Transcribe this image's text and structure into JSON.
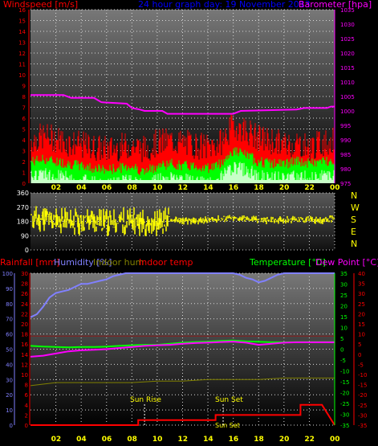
{
  "header": {
    "left_label": "Windspeed [m/s]",
    "center_label": "24 hour graph day:  19 November 2013",
    "right_label": "Barometer [hpa]"
  },
  "colors": {
    "wind": "#ff0000",
    "gust_bg": "#ff0000",
    "wind_avg": "#00ff00",
    "wind_light": "#c8ffc8",
    "baro": "#ff00ff",
    "dir": "#ffff00",
    "rain": "#ff0000",
    "humidity": "#8080ff",
    "indoor_hum": "#808000",
    "indoor_temp": "#ff0000",
    "temperature": "#00ff00",
    "dewpoint": "#ff00ff",
    "left_axis": "#ff0000",
    "baro_axis": "#ff00ff",
    "temp_axis": "#00ff00",
    "dew_axis": "#ff0000",
    "hum_axis": "#8080ff",
    "x_axis": "#ffff00"
  },
  "x_ticks": [
    "02",
    "04",
    "06",
    "08",
    "10",
    "12",
    "14",
    "16",
    "18",
    "20",
    "22",
    "00"
  ],
  "chart_data": [
    {
      "type": "line",
      "title": "24 hour graph day:  19 November 2013",
      "ylabel_left": "Windspeed [m/s]",
      "ylabel_right": "Barometer [hpa]",
      "y_left_ticks": [
        "0",
        "1",
        "2",
        "3",
        "4",
        "5",
        "6",
        "7",
        "8",
        "9",
        "10",
        "11",
        "12",
        "13",
        "14",
        "15",
        "16"
      ],
      "y_right_ticks": [
        "975",
        "980",
        "985",
        "990",
        "995",
        "1000",
        "1005",
        "1010",
        "1015",
        "1020",
        "1025",
        "1030",
        "1035"
      ],
      "ylim_left": [
        0,
        16
      ],
      "ylim_right": [
        975,
        1035
      ],
      "series": [
        {
          "name": "Barometer",
          "axis": "right",
          "x": [
            0,
            2.6,
            3.2,
            5.0,
            5.6,
            7.6,
            8.0,
            8.6,
            9.0,
            10.4,
            10.8,
            11.2,
            11.6,
            16.0,
            16.6,
            21.0,
            21.6,
            23.4,
            23.7,
            24
          ],
          "values": [
            1005.5,
            1005.5,
            1004.5,
            1004.5,
            1003.0,
            1002.5,
            1001.0,
            1000.5,
            1000.0,
            1000.0,
            999.0,
            999.0,
            999.0,
            999.0,
            1000.0,
            1000.5,
            1001.0,
            1001.0,
            1001.5,
            1001.5
          ]
        },
        {
          "name": "Wind gust",
          "axis": "left",
          "x": [
            0,
            1,
            2,
            3,
            4,
            5,
            6,
            7,
            8,
            9,
            10,
            11,
            12,
            13,
            14,
            15,
            16,
            17,
            18,
            19,
            20,
            21,
            22,
            23,
            24
          ],
          "values": [
            3.8,
            4.2,
            4.0,
            3.6,
            3.4,
            3.2,
            3.0,
            3.2,
            3.4,
            3.0,
            3.6,
            3.8,
            3.6,
            3.4,
            3.2,
            3.6,
            5.2,
            4.8,
            4.0,
            3.8,
            3.4,
            3.6,
            3.2,
            3.6,
            3.8
          ]
        },
        {
          "name": "Wind average",
          "axis": "left",
          "x": [
            0,
            1,
            2,
            3,
            4,
            5,
            6,
            7,
            8,
            9,
            10,
            11,
            12,
            13,
            14,
            15,
            16,
            17,
            18,
            19,
            20,
            21,
            22,
            23,
            24
          ],
          "values": [
            2.0,
            2.2,
            2.0,
            1.8,
            1.6,
            1.4,
            1.2,
            1.4,
            1.6,
            1.0,
            1.6,
            1.8,
            1.6,
            1.6,
            1.4,
            1.8,
            3.0,
            2.6,
            2.0,
            1.8,
            1.8,
            2.0,
            1.8,
            2.0,
            2.2
          ]
        }
      ]
    },
    {
      "type": "scatter",
      "y_ticks": [
        "360",
        "270",
        "180",
        "90",
        "0"
      ],
      "ylim": [
        0,
        360
      ],
      "right_labels": [
        "N",
        "W",
        "S",
        "E",
        "N"
      ],
      "series": [
        {
          "name": "Wind direction",
          "x": [
            0,
            1,
            2,
            3,
            4,
            5,
            6,
            7,
            8,
            9,
            10,
            11,
            12,
            13,
            14,
            15,
            16,
            17,
            18,
            19,
            20,
            21,
            22,
            23,
            24
          ],
          "values": [
            190,
            200,
            185,
            175,
            180,
            190,
            170,
            185,
            180,
            175,
            170,
            190,
            185,
            180,
            190,
            195,
            200,
            195,
            190,
            185,
            190,
            195,
            190,
            185,
            200
          ]
        }
      ]
    },
    {
      "type": "line",
      "labels": [
        "Rainfall [mm]",
        "Humidity [%]",
        "Indoor hum",
        "Indoor temp",
        "Temperature [°C]",
        "Dew Point [°C]"
      ],
      "annotations": [
        "Sun Rise",
        "Sun Set",
        "Sun Set"
      ],
      "y_rain_ticks": [
        "30",
        "28",
        "26",
        "24",
        "22",
        "20",
        "18",
        "16",
        "14",
        "12",
        "10",
        "8",
        "6",
        "4",
        "2",
        "0"
      ],
      "y_hum_ticks": [
        "100",
        "90",
        "80",
        "70",
        "60",
        "50",
        "40",
        "30",
        "20",
        "10",
        "0"
      ],
      "y_temp_ticks": [
        "35",
        "30",
        "25",
        "20",
        "15",
        "10",
        "5",
        "0",
        "-5",
        "-10",
        "-15",
        "-20",
        "-25",
        "-30",
        "-35"
      ],
      "y_dew_ticks": [
        "40",
        "35",
        "30",
        "25",
        "20",
        "15",
        "10",
        "5",
        "0",
        "-5",
        "-10",
        "-15",
        "-20",
        "-25",
        "-30",
        "-35"
      ],
      "ylim_hum": [
        0,
        100
      ],
      "ylim_temp": [
        -35,
        35
      ],
      "series": [
        {
          "name": "Humidity",
          "axis": "hum",
          "x": [
            0,
            0.5,
            1,
            1.5,
            2,
            2.5,
            3,
            3.5,
            4,
            4.5,
            5,
            5.5,
            6,
            6.5,
            7,
            7.5,
            8,
            9,
            10,
            12,
            14,
            15,
            16,
            16.5,
            17,
            17.5,
            18,
            18.5,
            19,
            19.5,
            20,
            22,
            24
          ],
          "values": [
            71,
            73,
            78,
            84,
            87,
            88,
            89,
            91,
            93,
            93,
            94,
            95,
            96,
            98,
            99,
            100,
            100,
            100,
            100,
            100,
            100,
            100,
            100,
            99,
            97,
            96,
            94,
            95,
            97,
            99,
            100,
            100,
            100
          ]
        },
        {
          "name": "Temperature",
          "axis": "temp",
          "x": [
            0,
            1,
            2,
            3,
            4,
            5,
            6,
            7,
            8,
            9,
            10,
            11,
            12,
            13,
            14,
            15,
            16,
            17,
            18,
            19,
            20,
            21,
            22,
            23,
            24
          ],
          "values": [
            1.5,
            1.2,
            1.0,
            0.8,
            1.0,
            1.0,
            1.2,
            1.5,
            1.8,
            2.0,
            2.0,
            2.5,
            3.0,
            3.3,
            3.5,
            3.8,
            4.0,
            3.6,
            3.4,
            3.2,
            3.2,
            3.3,
            3.3,
            3.3,
            3.3
          ]
        },
        {
          "name": "Dew point",
          "axis": "temp",
          "x": [
            0,
            1,
            2,
            3,
            4,
            5,
            6,
            7,
            8,
            9,
            10,
            11,
            12,
            13,
            14,
            15,
            16,
            17,
            18,
            19,
            20,
            21,
            22,
            23,
            24
          ],
          "values": [
            -3.5,
            -3.0,
            -2.0,
            -1.0,
            -0.5,
            -0.3,
            0.0,
            0.5,
            1.0,
            1.5,
            1.8,
            2.0,
            2.5,
            2.8,
            3.0,
            3.3,
            3.5,
            3.0,
            2.0,
            2.5,
            3.0,
            3.2,
            3.2,
            3.2,
            3.2
          ]
        },
        {
          "name": "Indoor hum",
          "axis": "hum",
          "x": [
            0,
            1,
            2,
            4,
            6,
            8,
            10,
            12,
            14,
            16,
            18,
            20,
            22,
            24
          ],
          "values": [
            26,
            27,
            28,
            28,
            28,
            28,
            29,
            29,
            30,
            30,
            30,
            31,
            31,
            31
          ]
        },
        {
          "name": "Indoor temp",
          "axis": "temp",
          "x": [
            0,
            4,
            8,
            12,
            16,
            20,
            24
          ],
          "values": [
            6,
            6,
            6,
            6,
            6,
            6,
            6
          ]
        },
        {
          "name": "Rainfall",
          "axis": "rain",
          "x": [
            0,
            8.5,
            8.5,
            14.6,
            14.6,
            21.3,
            21.3,
            23.0,
            23.0,
            24
          ],
          "values": [
            0,
            0,
            1.0,
            1.0,
            2.0,
            2.0,
            4.0,
            4.0,
            4.0,
            0
          ]
        }
      ]
    }
  ]
}
